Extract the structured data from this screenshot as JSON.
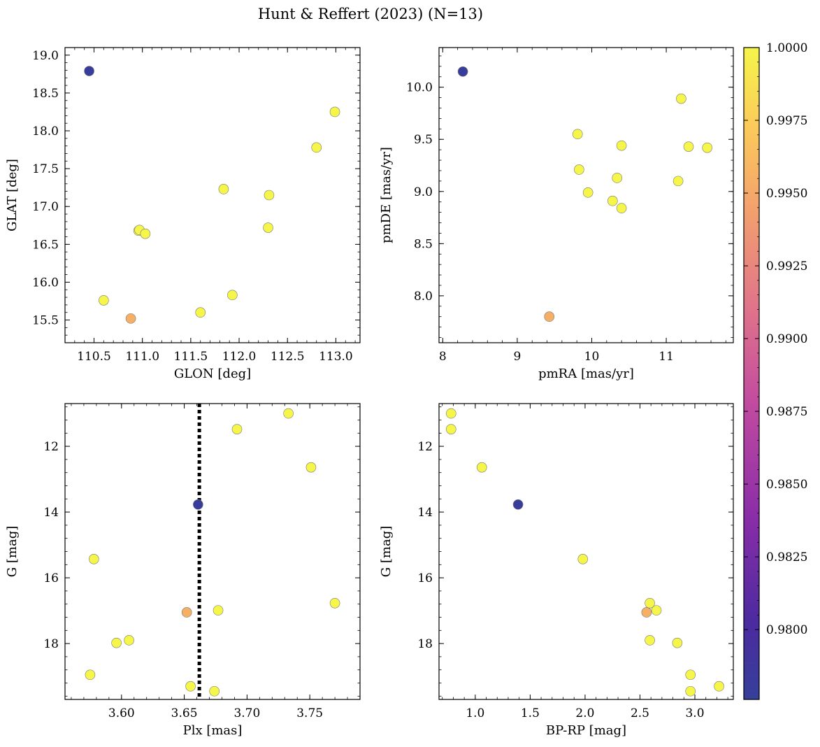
{
  "suptitle": "Hunt & Reffert (2023) (N=13)",
  "colorbar": {
    "min": 0.9776,
    "max": 1.0,
    "ticks": [
      "1.0000",
      "0.9975",
      "0.9950",
      "0.9925",
      "0.9900",
      "0.9875",
      "0.9850",
      "0.9825",
      "0.9800"
    ],
    "colormap": "plasma"
  },
  "chart_data": [
    {
      "type": "scatter",
      "xlabel": "GLON [deg]",
      "ylabel": "GLAT [deg]",
      "xlim": [
        110.2,
        113.25
      ],
      "ylim": [
        15.2,
        19.1
      ],
      "xticks": [
        110.5,
        111.0,
        111.5,
        112.0,
        112.5,
        113.0
      ],
      "xtick_labels": [
        "110.5",
        "111.0",
        "111.5",
        "112.0",
        "112.5",
        "113.0"
      ],
      "yticks": [
        15.5,
        16.0,
        16.5,
        17.0,
        17.5,
        18.0,
        18.5,
        19.0
      ],
      "ytick_labels": [
        "15.5",
        "16.0",
        "16.5",
        "17.0",
        "17.5",
        "18.0",
        "18.5",
        "19.0"
      ],
      "points": [
        {
          "x": 110.45,
          "y": 18.79,
          "p": 0.978
        },
        {
          "x": 110.6,
          "y": 15.76,
          "p": 1.0
        },
        {
          "x": 110.88,
          "y": 15.52,
          "p": 0.9955
        },
        {
          "x": 110.96,
          "y": 16.68,
          "p": 1.0
        },
        {
          "x": 110.97,
          "y": 16.69,
          "p": 1.0
        },
        {
          "x": 111.03,
          "y": 16.64,
          "p": 1.0
        },
        {
          "x": 111.6,
          "y": 15.6,
          "p": 1.0
        },
        {
          "x": 111.84,
          "y": 17.23,
          "p": 1.0
        },
        {
          "x": 111.93,
          "y": 15.83,
          "p": 1.0
        },
        {
          "x": 112.31,
          "y": 17.15,
          "p": 1.0
        },
        {
          "x": 112.3,
          "y": 16.72,
          "p": 1.0
        },
        {
          "x": 112.8,
          "y": 17.78,
          "p": 1.0
        },
        {
          "x": 112.99,
          "y": 18.25,
          "p": 1.0
        }
      ]
    },
    {
      "type": "scatter",
      "xlabel": "pmRA [mas/yr]",
      "ylabel": "pmDE [mas/yr]",
      "xlim": [
        7.95,
        11.9
      ],
      "ylim": [
        7.55,
        10.38
      ],
      "xticks": [
        8,
        9,
        10,
        11
      ],
      "xtick_labels": [
        "8",
        "9",
        "10",
        "11"
      ],
      "yticks": [
        8.0,
        8.5,
        9.0,
        9.5,
        10.0
      ],
      "ytick_labels": [
        "8.0",
        "8.5",
        "9.0",
        "9.5",
        "10.0"
      ],
      "points": [
        {
          "x": 8.27,
          "y": 10.15,
          "p": 0.978
        },
        {
          "x": 9.43,
          "y": 7.8,
          "p": 0.9955
        },
        {
          "x": 9.81,
          "y": 9.55,
          "p": 1.0
        },
        {
          "x": 9.83,
          "y": 9.21,
          "p": 1.0
        },
        {
          "x": 9.95,
          "y": 8.99,
          "p": 1.0
        },
        {
          "x": 10.28,
          "y": 8.91,
          "p": 1.0
        },
        {
          "x": 10.34,
          "y": 9.13,
          "p": 1.0
        },
        {
          "x": 10.4,
          "y": 9.44,
          "p": 1.0
        },
        {
          "x": 10.4,
          "y": 8.84,
          "p": 1.0
        },
        {
          "x": 11.16,
          "y": 9.1,
          "p": 1.0
        },
        {
          "x": 11.2,
          "y": 9.89,
          "p": 1.0
        },
        {
          "x": 11.3,
          "y": 9.43,
          "p": 1.0
        },
        {
          "x": 11.55,
          "y": 9.42,
          "p": 1.0
        }
      ]
    },
    {
      "type": "scatter",
      "xlabel": "Plx [mas]",
      "ylabel": "G [mag]",
      "xlim": [
        3.555,
        3.79
      ],
      "ylim": [
        19.7,
        10.7
      ],
      "inverted_y": true,
      "vline": 3.662,
      "xticks": [
        3.6,
        3.65,
        3.7,
        3.75
      ],
      "xtick_labels": [
        "3.60",
        "3.65",
        "3.70",
        "3.75"
      ],
      "yticks": [
        12,
        14,
        16,
        18
      ],
      "ytick_labels": [
        "12",
        "14",
        "16",
        "18"
      ],
      "points": [
        {
          "x": 3.733,
          "y": 11.0,
          "p": 1.0
        },
        {
          "x": 3.692,
          "y": 11.48,
          "p": 1.0
        },
        {
          "x": 3.751,
          "y": 12.64,
          "p": 1.0
        },
        {
          "x": 3.661,
          "y": 13.77,
          "p": 0.978
        },
        {
          "x": 3.578,
          "y": 15.43,
          "p": 1.0
        },
        {
          "x": 3.77,
          "y": 16.77,
          "p": 1.0
        },
        {
          "x": 3.677,
          "y": 16.99,
          "p": 1.0
        },
        {
          "x": 3.652,
          "y": 17.05,
          "p": 0.9955
        },
        {
          "x": 3.606,
          "y": 17.9,
          "p": 1.0
        },
        {
          "x": 3.596,
          "y": 17.98,
          "p": 1.0
        },
        {
          "x": 3.575,
          "y": 18.95,
          "p": 1.0
        },
        {
          "x": 3.655,
          "y": 19.3,
          "p": 1.0
        },
        {
          "x": 3.674,
          "y": 19.45,
          "p": 1.0
        }
      ]
    },
    {
      "type": "scatter",
      "xlabel": "BP-RP [mag]",
      "ylabel": "G [mag]",
      "xlim": [
        0.67,
        3.35
      ],
      "ylim": [
        19.7,
        10.7
      ],
      "inverted_y": true,
      "xticks": [
        1.0,
        1.5,
        2.0,
        2.5,
        3.0
      ],
      "xtick_labels": [
        "1.0",
        "1.5",
        "2.0",
        "2.5",
        "3.0"
      ],
      "yticks": [
        12,
        14,
        16,
        18
      ],
      "ytick_labels": [
        "12",
        "14",
        "16",
        "18"
      ],
      "points": [
        {
          "x": 0.78,
          "y": 11.0,
          "p": 1.0
        },
        {
          "x": 0.78,
          "y": 11.48,
          "p": 1.0
        },
        {
          "x": 1.06,
          "y": 12.64,
          "p": 1.0
        },
        {
          "x": 1.39,
          "y": 13.77,
          "p": 0.978
        },
        {
          "x": 1.98,
          "y": 15.43,
          "p": 1.0
        },
        {
          "x": 2.59,
          "y": 16.77,
          "p": 1.0
        },
        {
          "x": 2.65,
          "y": 16.99,
          "p": 1.0
        },
        {
          "x": 2.56,
          "y": 17.05,
          "p": 0.9955
        },
        {
          "x": 2.59,
          "y": 17.9,
          "p": 1.0
        },
        {
          "x": 2.84,
          "y": 17.98,
          "p": 1.0
        },
        {
          "x": 2.96,
          "y": 18.95,
          "p": 1.0
        },
        {
          "x": 2.96,
          "y": 19.45,
          "p": 1.0
        },
        {
          "x": 3.22,
          "y": 19.3,
          "p": 1.0
        }
      ]
    }
  ]
}
